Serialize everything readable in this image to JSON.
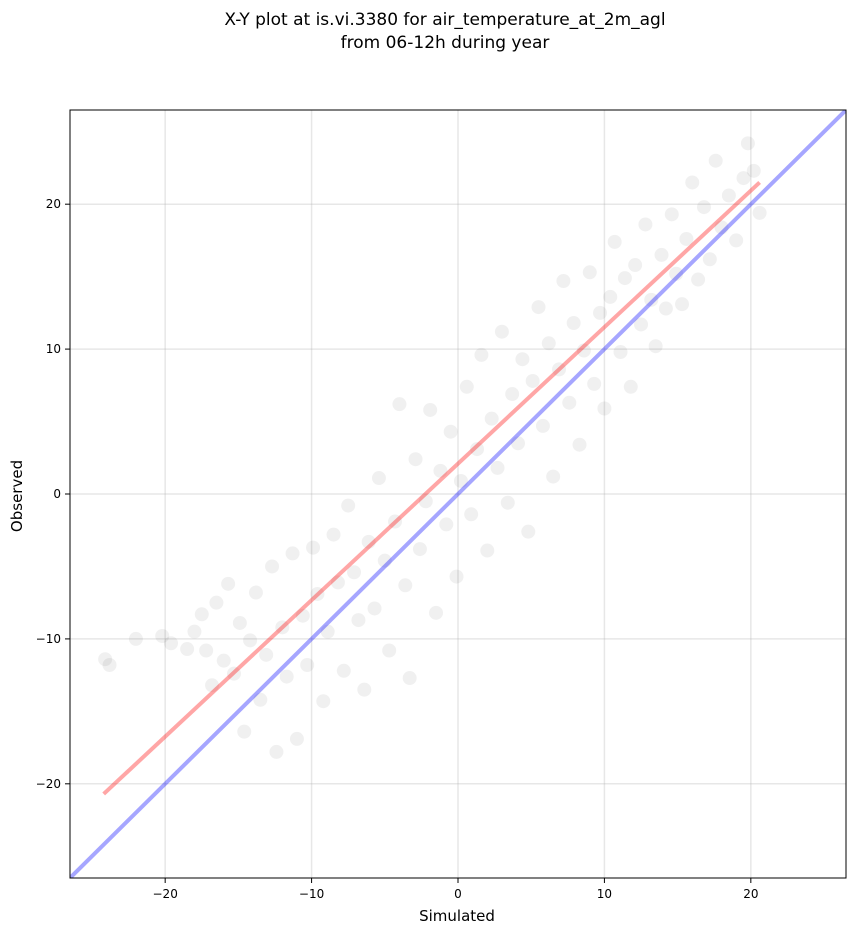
{
  "chart_data": {
    "type": "scatter",
    "title_line1": "X-Y plot at is.vi.3380 for air_temperature_at_2m_agl",
    "title_line2": "from 06-12h during year",
    "xlabel": "Simulated",
    "ylabel": "Observed",
    "xlim": [
      -26.5,
      26.5
    ],
    "ylim": [
      -26.5,
      26.5
    ],
    "xticks": [
      -20,
      -10,
      0,
      10,
      20
    ],
    "yticks": [
      -20,
      -10,
      0,
      10,
      20
    ],
    "xtick_labels": [
      "−20",
      "−10",
      "0",
      "10",
      "20"
    ],
    "ytick_labels": [
      "−20",
      "−10",
      "0",
      "10",
      "20"
    ],
    "grid": true,
    "marker_color": "#000000",
    "marker_alpha": 0.06,
    "identity_line": {
      "x": [
        -26.5,
        26.5
      ],
      "y": [
        -26.5,
        26.5
      ],
      "color": "#0000ff",
      "alpha": 0.35
    },
    "fit_line": {
      "x": [
        -24.2,
        20.6
      ],
      "y": [
        -20.7,
        21.5
      ],
      "color": "#ff0000",
      "alpha": 0.35
    },
    "points": [
      [
        -24.1,
        -11.4
      ],
      [
        -23.8,
        -11.8
      ],
      [
        -22.0,
        -10.0
      ],
      [
        -20.2,
        -9.8
      ],
      [
        -19.6,
        -10.3
      ],
      [
        -18.5,
        -10.7
      ],
      [
        -18.0,
        -9.5
      ],
      [
        -17.5,
        -8.3
      ],
      [
        -17.2,
        -10.8
      ],
      [
        -16.8,
        -13.2
      ],
      [
        -16.5,
        -7.5
      ],
      [
        -16.0,
        -11.5
      ],
      [
        -15.7,
        -6.2
      ],
      [
        -15.3,
        -12.4
      ],
      [
        -14.9,
        -8.9
      ],
      [
        -14.6,
        -16.4
      ],
      [
        -14.2,
        -10.1
      ],
      [
        -13.8,
        -6.8
      ],
      [
        -13.5,
        -14.2
      ],
      [
        -13.1,
        -11.1
      ],
      [
        -12.7,
        -5.0
      ],
      [
        -12.4,
        -17.8
      ],
      [
        -12.0,
        -9.2
      ],
      [
        -11.7,
        -12.6
      ],
      [
        -11.3,
        -4.1
      ],
      [
        -11.0,
        -16.9
      ],
      [
        -10.6,
        -8.4
      ],
      [
        -10.3,
        -11.8
      ],
      [
        -9.9,
        -3.7
      ],
      [
        -9.6,
        -6.9
      ],
      [
        -9.2,
        -14.3
      ],
      [
        -8.9,
        -9.5
      ],
      [
        -8.5,
        -2.8
      ],
      [
        -8.2,
        -6.1
      ],
      [
        -7.8,
        -12.2
      ],
      [
        -7.5,
        -0.8
      ],
      [
        -7.1,
        -5.4
      ],
      [
        -6.8,
        -8.7
      ],
      [
        -6.4,
        -13.5
      ],
      [
        -6.1,
        -3.3
      ],
      [
        -5.7,
        -7.9
      ],
      [
        -5.4,
        1.1
      ],
      [
        -5.0,
        -4.6
      ],
      [
        -4.7,
        -10.8
      ],
      [
        -4.3,
        -1.9
      ],
      [
        -4.0,
        6.2
      ],
      [
        -3.6,
        -6.3
      ],
      [
        -3.3,
        -12.7
      ],
      [
        -2.9,
        2.4
      ],
      [
        -2.6,
        -3.8
      ],
      [
        -2.2,
        -0.5
      ],
      [
        -1.9,
        5.8
      ],
      [
        -1.5,
        -8.2
      ],
      [
        -1.2,
        1.6
      ],
      [
        -0.8,
        -2.1
      ],
      [
        -0.5,
        4.3
      ],
      [
        -0.1,
        -5.7
      ],
      [
        0.2,
        0.9
      ],
      [
        0.6,
        7.4
      ],
      [
        0.9,
        -1.4
      ],
      [
        1.3,
        3.1
      ],
      [
        1.6,
        9.6
      ],
      [
        2.0,
        -3.9
      ],
      [
        2.3,
        5.2
      ],
      [
        2.7,
        1.8
      ],
      [
        3.0,
        11.2
      ],
      [
        3.4,
        -0.6
      ],
      [
        3.7,
        6.9
      ],
      [
        4.1,
        3.5
      ],
      [
        4.4,
        9.3
      ],
      [
        4.8,
        -2.6
      ],
      [
        5.1,
        7.8
      ],
      [
        5.5,
        12.9
      ],
      [
        5.8,
        4.7
      ],
      [
        6.2,
        10.4
      ],
      [
        6.5,
        1.2
      ],
      [
        6.9,
        8.6
      ],
      [
        7.2,
        14.7
      ],
      [
        7.6,
        6.3
      ],
      [
        7.9,
        11.8
      ],
      [
        8.3,
        3.4
      ],
      [
        8.6,
        9.9
      ],
      [
        9.0,
        15.3
      ],
      [
        9.3,
        7.6
      ],
      [
        9.7,
        12.5
      ],
      [
        10.0,
        5.9
      ],
      [
        10.4,
        13.6
      ],
      [
        10.7,
        17.4
      ],
      [
        11.1,
        9.8
      ],
      [
        11.4,
        14.9
      ],
      [
        11.8,
        7.4
      ],
      [
        12.1,
        15.8
      ],
      [
        12.5,
        11.7
      ],
      [
        12.8,
        18.6
      ],
      [
        13.2,
        13.4
      ],
      [
        13.5,
        10.2
      ],
      [
        13.9,
        16.5
      ],
      [
        14.2,
        12.8
      ],
      [
        14.6,
        19.3
      ],
      [
        14.9,
        15.2
      ],
      [
        15.3,
        13.1
      ],
      [
        15.6,
        17.6
      ],
      [
        16.0,
        21.5
      ],
      [
        16.4,
        14.8
      ],
      [
        16.8,
        19.8
      ],
      [
        17.2,
        16.2
      ],
      [
        17.6,
        23.0
      ],
      [
        18.0,
        18.4
      ],
      [
        18.5,
        20.6
      ],
      [
        19.0,
        17.5
      ],
      [
        19.5,
        21.8
      ],
      [
        19.8,
        24.2
      ],
      [
        20.2,
        22.3
      ],
      [
        20.6,
        19.4
      ]
    ]
  }
}
